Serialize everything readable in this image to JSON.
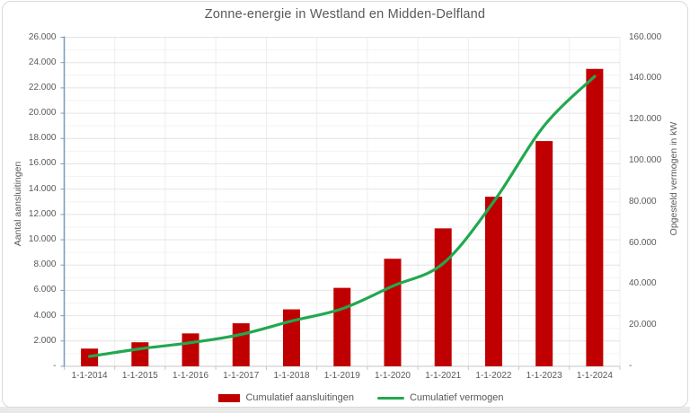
{
  "title": "Zonne-energie in Westland en Midden-Delfland",
  "colors": {
    "bar": "#c00000",
    "line": "#22a850",
    "left_axis_line": "#7f9db9",
    "bottom_axis_line": "#c6c6c6",
    "grid_minor": "#f3f3f3",
    "grid_major": "#e4e4e4",
    "grid_vertical": "#ededed",
    "text": "#595959",
    "frame": "#d9d9d9"
  },
  "chart_data": {
    "type": "combo-bar-line",
    "categories": [
      "1-1-2014",
      "1-1-2015",
      "1-1-2016",
      "1-1-2017",
      "1-1-2018",
      "1-1-2019",
      "1-1-2020",
      "1-1-2021",
      "1-1-2022",
      "1-1-2023",
      "1-1-2024"
    ],
    "series": [
      {
        "name": "Cumulatief aansluitingen",
        "type": "bar",
        "axis": "left",
        "color": "#c00000",
        "values": [
          1400,
          1900,
          2600,
          3400,
          4500,
          6200,
          8500,
          10900,
          13400,
          17800,
          23500
        ]
      },
      {
        "name": "Cumulatief vermogen",
        "type": "line",
        "axis": "right",
        "color": "#22a850",
        "values": [
          4800,
          8500,
          11500,
          15500,
          22000,
          28000,
          39000,
          50000,
          80000,
          117000,
          141000
        ]
      }
    ],
    "axes": {
      "left": {
        "title": "Aantal aansluitingen",
        "min": 0,
        "max": 26000,
        "label_step": 2000,
        "minor_step": 1000,
        "tick_labels": [
          "26.000",
          "24.000",
          "22.000",
          "20.000",
          "18.000",
          "16.000",
          "14.000",
          "12.000",
          "10.000",
          "8.000",
          "6.000",
          "4.000",
          "2.000",
          "-"
        ]
      },
      "right": {
        "title": "Opgesteld vermogen in kW",
        "min": 0,
        "max": 160000,
        "label_step": 20000,
        "tick_labels": [
          "160.000",
          "140.000",
          "120.000",
          "100.000",
          "80.000",
          "60.000",
          "40.000",
          "20.000",
          "-"
        ]
      }
    },
    "legend": [
      {
        "label": "Cumulatief aansluitingen",
        "swatch": "bar",
        "color": "#c00000"
      },
      {
        "label": "Cumulatief vermogen",
        "swatch": "line",
        "color": "#22a850"
      }
    ],
    "grid": true,
    "legend_position": "bottom"
  }
}
